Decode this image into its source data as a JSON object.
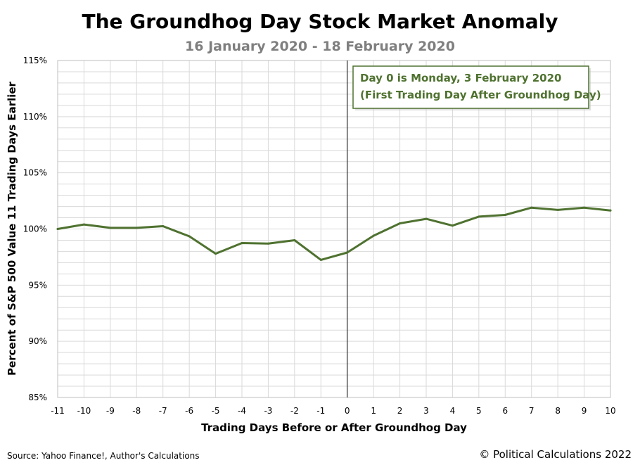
{
  "colors": {
    "series": "#4f7230",
    "grid": "#d9d9d9",
    "annotation_text": "#4f7230",
    "annotation_border": "#4f7230",
    "subtitle": "#7f7f7f"
  },
  "chart_data": {
    "type": "line",
    "title": "The Groundhog Day Stock Market Anomaly",
    "subtitle": "16 January 2020 - 18 February 2020",
    "xlabel": "Trading Days Before or After Groundhog Day",
    "ylabel": "Percent of S&P 500 Value 11 Trading Days Earlier",
    "xlim": [
      -11,
      10
    ],
    "ylim": [
      85,
      115
    ],
    "x_ticks": [
      -11,
      -10,
      -9,
      -8,
      -7,
      -6,
      -5,
      -4,
      -3,
      -2,
      -1,
      0,
      1,
      2,
      3,
      4,
      5,
      6,
      7,
      8,
      9,
      10
    ],
    "y_ticks": [
      85,
      90,
      95,
      100,
      105,
      110,
      115
    ],
    "y_tick_labels": [
      "85%",
      "90%",
      "95%",
      "100%",
      "105%",
      "110%",
      "115%"
    ],
    "grid": true,
    "reference_line_x": 0,
    "series": [
      {
        "name": "S&P 500",
        "x": [
          -11,
          -10,
          -9,
          -8,
          -7,
          -6,
          -5,
          -4,
          -3,
          -2,
          -1,
          0,
          1,
          2,
          3,
          4,
          5,
          6,
          7,
          8,
          9,
          10
        ],
        "values": [
          100.0,
          100.4,
          100.1,
          100.1,
          100.25,
          99.35,
          97.8,
          98.75,
          98.7,
          99.0,
          97.25,
          97.9,
          99.4,
          100.5,
          100.9,
          100.3,
          101.1,
          101.25,
          101.9,
          101.7,
          101.9,
          101.65
        ]
      }
    ],
    "annotation": {
      "line1": "Day 0 is Monday, 3 February 2020",
      "line2": "(First Trading Day After Groundhog Day)"
    }
  },
  "footer": {
    "source": "Source: Yahoo Finance!, Author's Calculations",
    "copyright": "© Political Calculations 2022"
  }
}
